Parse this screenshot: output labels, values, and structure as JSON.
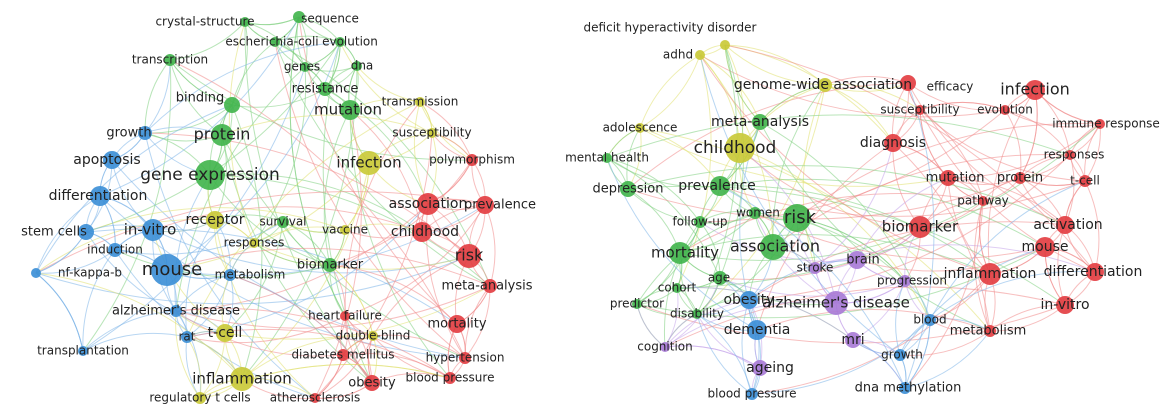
{
  "maps": [
    {
      "nodes": [
        "crystal-structure",
        "sequence",
        "escherichia-coli",
        "evolution",
        "transcription",
        "genes",
        "dna",
        "resistance",
        "binding",
        "mutation",
        "transmission",
        "growth",
        "protein",
        "susceptibility",
        "apoptosis",
        "infection",
        "polymorphism",
        "gene expression",
        "differentiation",
        "association",
        "prevalence",
        "receptor",
        "survival",
        "vaccine",
        "childhood",
        "stem cells",
        "in-vitro",
        "responses",
        "induction",
        "risk",
        "nf-kappa-b",
        "mouse",
        "metabolism",
        "biomarker",
        "meta-analysis",
        "alzheimer's disease",
        "heart failure",
        "t-cell",
        "rat",
        "double-blind",
        "mortality",
        "transplantation",
        "diabetes mellitus",
        "hypertension",
        "inflammation",
        "obesity",
        "blood pressure",
        "regulatory t cells",
        "atherosclerosis"
      ]
    },
    {
      "nodes": [
        "deficit hyperactivity disorder",
        "adhd",
        "genome-wide association",
        "efficacy",
        "infection",
        "susceptibility",
        "evolution",
        "immune response",
        "meta-analysis",
        "adolescence",
        "childhood",
        "diagnosis",
        "responses",
        "mental health",
        "prevalence",
        "mutation",
        "protein",
        "t-cell",
        "depression",
        "pathway",
        "follow-up",
        "women",
        "risk",
        "biomarker",
        "activation",
        "association",
        "brain",
        "mouse",
        "mortality",
        "stroke",
        "age",
        "inflammation",
        "differentiation",
        "progression",
        "cohort",
        "predictor",
        "obesity",
        "alzheimer's disease",
        "in-vitro",
        "disability",
        "blood",
        "dementia",
        "metabolism",
        "mri",
        "cognition",
        "growth",
        "ageing",
        "dna methylation",
        "blood pressure"
      ]
    }
  ]
}
